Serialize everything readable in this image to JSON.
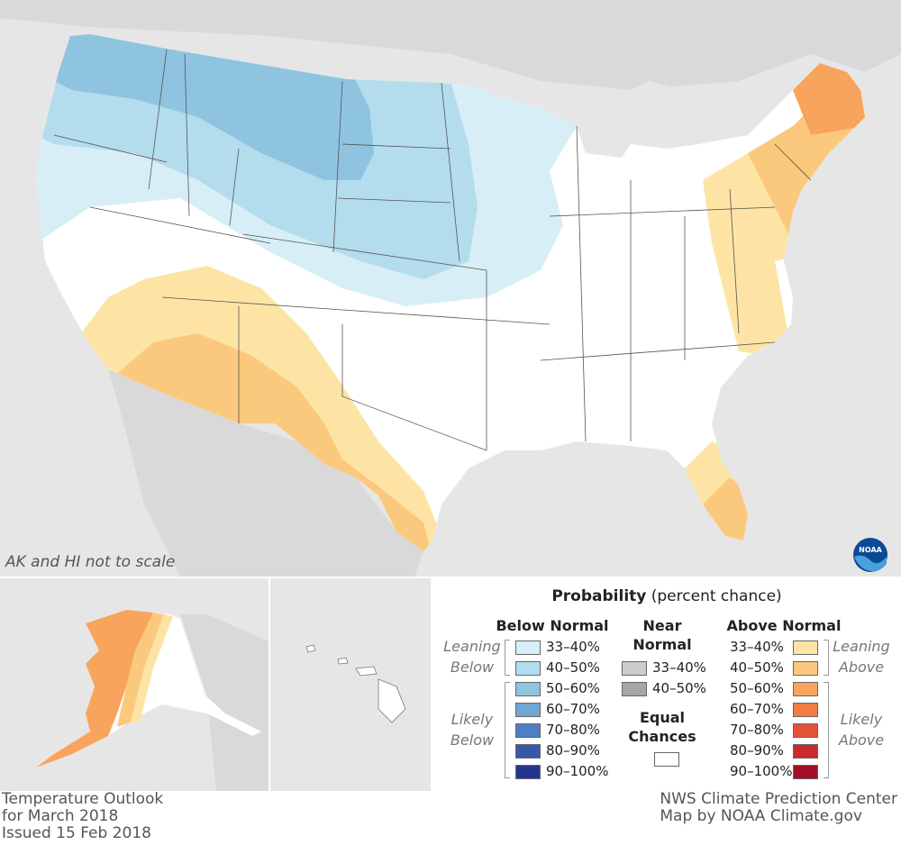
{
  "notes": {
    "not_to_scale": "AK and HI not to scale"
  },
  "logo": {
    "text": "NOAA"
  },
  "legend": {
    "title_bold": "Probability",
    "title_rest": " (percent chance)",
    "below_header": "Below Normal",
    "near_header_1": "Near",
    "near_header_2": "Normal",
    "above_header": "Above Normal",
    "leaning_1": "Leaning",
    "below_word": "Below",
    "likely": "Likely",
    "above_word": "Above",
    "equal_1": "Equal",
    "equal_2": "Chances",
    "below_bins": [
      {
        "label": "33–40%",
        "color": "#d7eef6"
      },
      {
        "label": "40–50%",
        "color": "#b3dcec"
      },
      {
        "label": "50–60%",
        "color": "#8fc4e0"
      },
      {
        "label": "60–70%",
        "color": "#6fa6d3"
      },
      {
        "label": "70–80%",
        "color": "#4e7fc1"
      },
      {
        "label": "80–90%",
        "color": "#3a58aa"
      },
      {
        "label": "90–100%",
        "color": "#26338e"
      }
    ],
    "near_bins": [
      {
        "label": "33–40%",
        "color": "#cccccc"
      },
      {
        "label": "40–50%",
        "color": "#a6a6a6"
      }
    ],
    "above_bins": [
      {
        "label": "33–40%",
        "color": "#fde4a5"
      },
      {
        "label": "40–50%",
        "color": "#fbc97d"
      },
      {
        "label": "50–60%",
        "color": "#f8a45c"
      },
      {
        "label": "60–70%",
        "color": "#f17c46"
      },
      {
        "label": "70–80%",
        "color": "#e2533a"
      },
      {
        "label": "80–90%",
        "color": "#c92a2f"
      },
      {
        "label": "90–100%",
        "color": "#a30e27"
      }
    ],
    "equal_color": "#ffffff"
  },
  "footer": {
    "left_1": "Temperature Outlook",
    "left_2": "for March 2018",
    "left_3": "Issued 15 Feb 2018",
    "right_1": "NWS Climate Prediction Center",
    "right_2": "Map by NOAA Climate.gov"
  }
}
